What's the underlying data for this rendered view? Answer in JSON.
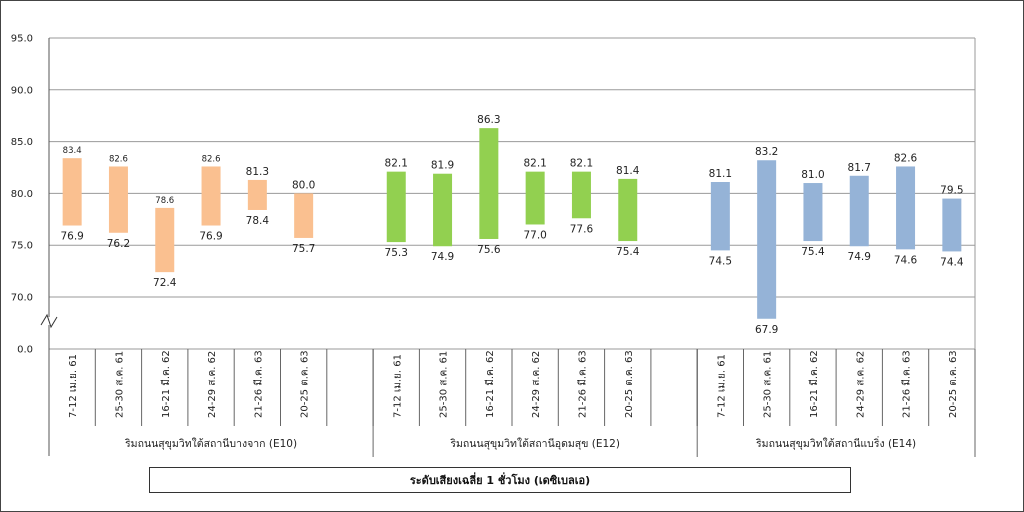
{
  "chart_data": {
    "type": "bar",
    "title": "ระดับเสียงเฉลี่ย 1 ชั่วโมง (เดซิเบลเอ)",
    "y_axis": {
      "ticks": [
        "95.0",
        "90.0",
        "85.0",
        "80.0",
        "75.0",
        "70.0",
        "0.0"
      ],
      "range": [
        70,
        95
      ],
      "axis_break": true,
      "grid": true
    },
    "groups": [
      {
        "name": "ริมถนนสุขุมวิทใต้สถานีบางจาก (E10)",
        "color": "#fac090",
        "bars": [
          {
            "category": "7-12 เม.ย. 61",
            "max": 83.4,
            "min": 76.9,
            "max_label": "83.4",
            "min_label": "76.9"
          },
          {
            "category": "25-30 ส.ค. 61",
            "max": 82.6,
            "min": 76.2,
            "max_label": "82.6",
            "min_label": "76.2"
          },
          {
            "category": "16-21 มี.ค. 62",
            "max": 78.6,
            "min": 72.4,
            "max_label": "78.6",
            "min_label": "72.4"
          },
          {
            "category": "24-29 ส.ค. 62",
            "max": 82.6,
            "min": 76.9,
            "max_label": "82.6",
            "min_label": "76.9"
          },
          {
            "category": "21-26 มี.ค. 63",
            "max": 81.3,
            "min": 78.4,
            "max_label": "81.3",
            "min_label": "78.4"
          },
          {
            "category": "20-25 ต.ค. 63",
            "max": 80.0,
            "min": 75.7,
            "max_label": "80.0",
            "min_label": "75.7"
          }
        ]
      },
      {
        "name": "ริมถนนสุขุมวิทใต้สถานีอุดมสุข (E12)",
        "color": "#92d050",
        "bars": [
          {
            "category": "7-12 เม.ย. 61",
            "max": 82.1,
            "min": 75.3,
            "max_label": "82.1",
            "min_label": "75.3"
          },
          {
            "category": "25-30 ส.ค. 61",
            "max": 81.9,
            "min": 74.9,
            "max_label": "81.9",
            "min_label": "74.9"
          },
          {
            "category": "16-21 มี.ค. 62",
            "max": 86.3,
            "min": 75.6,
            "max_label": "86.3",
            "min_label": "75.6"
          },
          {
            "category": "24-29 ส.ค. 62",
            "max": 82.1,
            "min": 77.0,
            "max_label": "82.1",
            "min_label": "77.0"
          },
          {
            "category": "21-26 มี.ค. 63",
            "max": 82.1,
            "min": 77.6,
            "max_label": "82.1",
            "min_label": "77.6"
          },
          {
            "category": "20-25 ต.ค. 63",
            "max": 81.4,
            "min": 75.4,
            "max_label": "81.4",
            "min_label": "75.4"
          }
        ]
      },
      {
        "name": "ริมถนนสุขุมวิทใต้สถานีแบริ่ง (E14)",
        "color": "#95b3d7",
        "bars": [
          {
            "category": "7-12 เม.ย. 61",
            "max": 81.1,
            "min": 74.5,
            "max_label": "81.1",
            "min_label": "74.5"
          },
          {
            "category": "25-30 ส.ค. 61",
            "max": 83.2,
            "min": 67.9,
            "max_label": "83.2",
            "min_label": "67.9"
          },
          {
            "category": "16-21 มี.ค. 62",
            "max": 81.0,
            "min": 75.4,
            "max_label": "81.0",
            "min_label": "75.4"
          },
          {
            "category": "24-29 ส.ค. 62",
            "max": 81.7,
            "min": 74.9,
            "max_label": "81.7",
            "min_label": "74.9"
          },
          {
            "category": "21-26 มี.ค. 63",
            "max": 82.6,
            "min": 74.6,
            "max_label": "82.6",
            "min_label": "74.6"
          },
          {
            "category": "20-25 ต.ค. 63",
            "max": 79.5,
            "min": 74.4,
            "max_label": "79.5",
            "min_label": "74.4"
          }
        ]
      }
    ]
  }
}
